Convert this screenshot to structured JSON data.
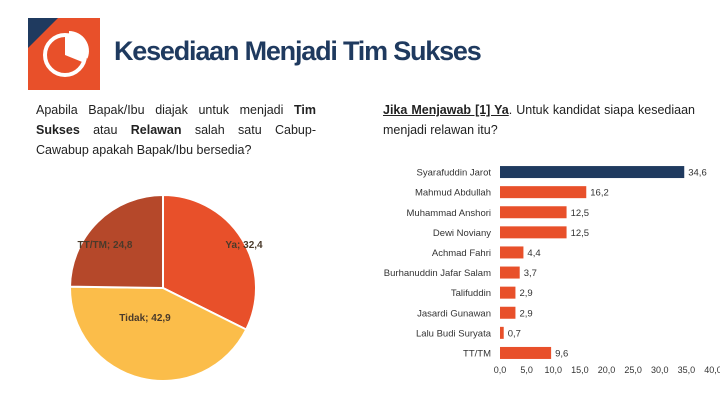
{
  "title": "Kesediaan Menjadi Tim Sukses",
  "left_question": {
    "part1": "Apabila Bapak/Ibu diajak untuk menjadi ",
    "bold1": "Tim Sukses",
    "part2": " atau ",
    "bold2": "Relawan",
    "part3": " salah satu Cabup-Cawabup apakah Bapak/Ibu bersedia?"
  },
  "right_question": {
    "bold1": "Jika Menjawab [1] Ya",
    "part1": ". Untuk kandidat siapa kesediaan menjadi relawan itu?"
  },
  "colors": {
    "brand": "#e8502a",
    "navy": "#1f3a5f",
    "bar_highlight": "#1f3a5f",
    "bar_default": "#e8502a",
    "pie_ya": "#e8502a",
    "pie_tidak": "#fbbd4a",
    "pie_tttm": "#b5482a"
  },
  "chart_data": [
    {
      "type": "pie",
      "slices": [
        {
          "label": "Ya; 32,4",
          "value": 32.4,
          "color": "#e8502a"
        },
        {
          "label": "Tidak; 42,9",
          "value": 42.9,
          "color": "#fbbd4a"
        },
        {
          "label": "TT/TM; 24,8",
          "value": 24.8,
          "color": "#b5482a"
        }
      ]
    },
    {
      "type": "bar",
      "orientation": "horizontal",
      "categories": [
        "Syarafuddin Jarot",
        "Mahmud Abdullah",
        "Muhammad Anshori",
        "Dewi Noviany",
        "Achmad Fahri",
        "Burhanuddin Jafar Salam",
        "Talifuddin",
        "Jasardi Gunawan",
        "Lalu Budi Suryata",
        "TT/TM"
      ],
      "values": [
        34.6,
        16.2,
        12.5,
        12.5,
        4.4,
        3.7,
        2.9,
        2.9,
        0.7,
        9.6
      ],
      "value_labels": [
        "34,6",
        "16,2",
        "12,5",
        "12,5",
        "4,4",
        "3,7",
        "2,9",
        "2,9",
        "0,7",
        "9,6"
      ],
      "xlim": [
        0,
        40
      ],
      "xticks": [
        0,
        5,
        10,
        15,
        20,
        25,
        30,
        35,
        40
      ],
      "xtick_labels": [
        "0,0",
        "5,0",
        "10,0",
        "15,0",
        "20,0",
        "25,0",
        "30,0",
        "35,0",
        "40,0"
      ],
      "grid": false
    }
  ]
}
